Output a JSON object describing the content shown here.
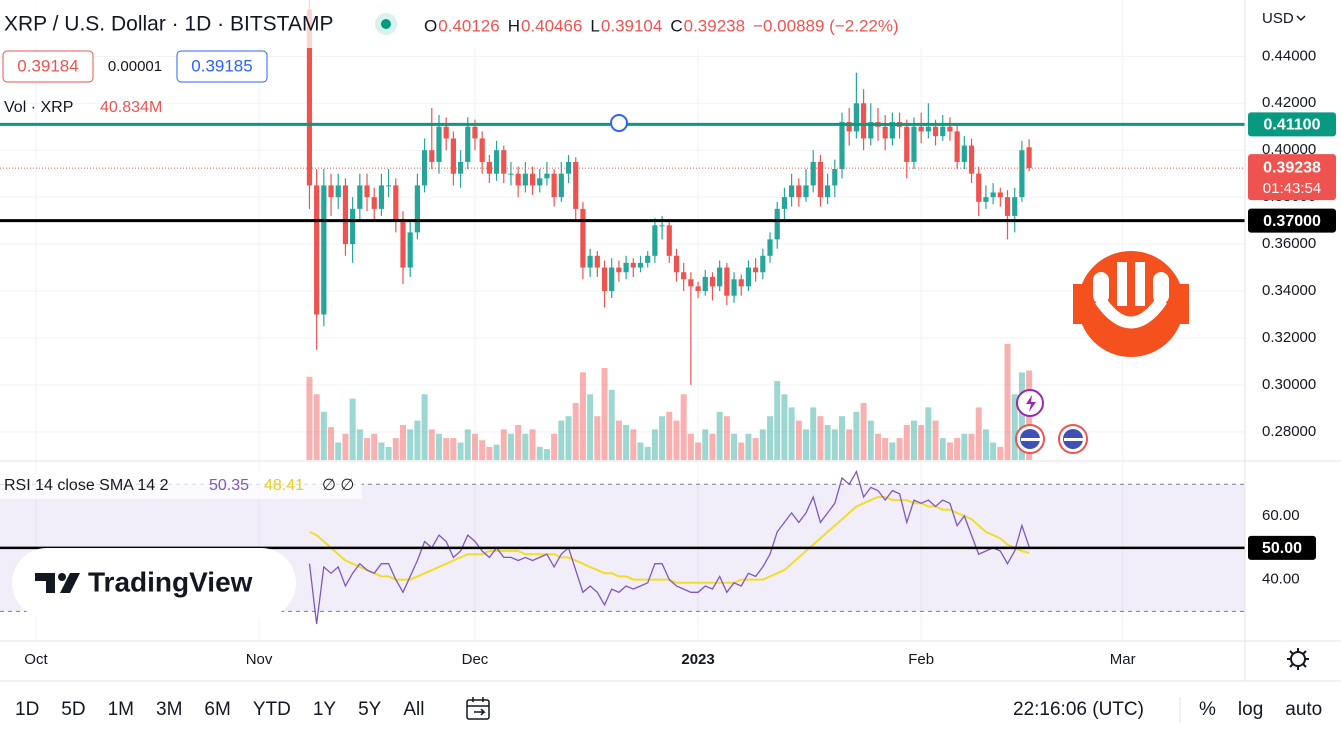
{
  "chart_data": {
    "type": "candlestick",
    "title": "XRP / U.S. Dollar · 1D · BITSTAMP",
    "ohlc": [
      {
        "key": "O",
        "value": "0.40126"
      },
      {
        "key": "H",
        "value": "0.40466"
      },
      {
        "key": "L",
        "value": "0.39104"
      },
      {
        "key": "C",
        "value": "0.39238"
      }
    ],
    "change": "−0.00889 (−2.22%)",
    "quotes": [
      "0.39184",
      "0.00001",
      "0.39185"
    ],
    "currency": "USD",
    "up_color": "#26a69a",
    "down_color": "#ef5350",
    "ylim": [
      0.268,
      0.464
    ],
    "yticks": [
      {
        "value": 0.28,
        "label": "0.28000"
      },
      {
        "value": 0.3,
        "label": "0.30000"
      },
      {
        "value": 0.32,
        "label": "0.32000"
      },
      {
        "value": 0.34,
        "label": "0.34000"
      },
      {
        "value": 0.36,
        "label": "0.36000"
      },
      {
        "value": 0.38,
        "label": "0.38000"
      },
      {
        "value": 0.4,
        "label": "0.40000"
      },
      {
        "value": 0.42,
        "label": "0.42000"
      },
      {
        "value": 0.44,
        "label": "0.44000"
      }
    ],
    "xlim": [
      -43,
      130
    ],
    "xticks": [
      {
        "value": -38,
        "label": "Oct"
      },
      {
        "value": -7,
        "label": "Nov"
      },
      {
        "value": 23,
        "label": "Dec"
      },
      {
        "value": 54,
        "label": "2023"
      },
      {
        "value": 85,
        "label": "Feb"
      },
      {
        "value": 113,
        "label": "Mar"
      }
    ],
    "grid": true,
    "lines": [
      {
        "value": 0.411,
        "label": "0.41100",
        "color": "#089981"
      },
      {
        "value": 0.37,
        "label": "0.37000",
        "color": "#000000"
      }
    ],
    "countdown": "01:43:54",
    "last_label": "0.39238",
    "candles": [
      [
        0.46,
        0.464,
        0.375,
        0.385
      ],
      [
        0.385,
        0.392,
        0.315,
        0.33
      ],
      [
        0.33,
        0.392,
        0.325,
        0.385
      ],
      [
        0.385,
        0.39,
        0.372,
        0.38
      ],
      [
        0.38,
        0.39,
        0.375,
        0.385
      ],
      [
        0.385,
        0.388,
        0.355,
        0.36
      ],
      [
        0.36,
        0.38,
        0.352,
        0.375
      ],
      [
        0.375,
        0.39,
        0.37,
        0.385
      ],
      [
        0.385,
        0.39,
        0.374,
        0.38
      ],
      [
        0.38,
        0.384,
        0.37,
        0.375
      ],
      [
        0.375,
        0.39,
        0.372,
        0.385
      ],
      [
        0.385,
        0.392,
        0.38,
        0.385
      ],
      [
        0.385,
        0.388,
        0.365,
        0.37
      ],
      [
        0.37,
        0.374,
        0.343,
        0.35
      ],
      [
        0.35,
        0.37,
        0.346,
        0.365
      ],
      [
        0.365,
        0.39,
        0.362,
        0.385
      ],
      [
        0.385,
        0.405,
        0.382,
        0.4
      ],
      [
        0.4,
        0.418,
        0.392,
        0.395
      ],
      [
        0.395,
        0.415,
        0.39,
        0.41
      ],
      [
        0.41,
        0.414,
        0.4,
        0.405
      ],
      [
        0.405,
        0.408,
        0.385,
        0.39
      ],
      [
        0.39,
        0.4,
        0.384,
        0.395
      ],
      [
        0.395,
        0.414,
        0.392,
        0.41
      ],
      [
        0.41,
        0.413,
        0.4,
        0.405
      ],
      [
        0.405,
        0.408,
        0.39,
        0.395
      ],
      [
        0.395,
        0.398,
        0.386,
        0.39
      ],
      [
        0.39,
        0.404,
        0.387,
        0.4
      ],
      [
        0.4,
        0.402,
        0.386,
        0.39
      ],
      [
        0.39,
        0.395,
        0.385,
        0.39
      ],
      [
        0.39,
        0.393,
        0.38,
        0.385
      ],
      [
        0.385,
        0.395,
        0.382,
        0.39
      ],
      [
        0.39,
        0.393,
        0.381,
        0.385
      ],
      [
        0.385,
        0.392,
        0.382,
        0.388
      ],
      [
        0.388,
        0.395,
        0.385,
        0.39
      ],
      [
        0.39,
        0.392,
        0.376,
        0.38
      ],
      [
        0.38,
        0.395,
        0.378,
        0.39
      ],
      [
        0.39,
        0.398,
        0.386,
        0.395
      ],
      [
        0.395,
        0.397,
        0.37,
        0.375
      ],
      [
        0.375,
        0.378,
        0.345,
        0.35
      ],
      [
        0.35,
        0.358,
        0.346,
        0.355
      ],
      [
        0.355,
        0.357,
        0.346,
        0.35
      ],
      [
        0.35,
        0.353,
        0.333,
        0.34
      ],
      [
        0.34,
        0.354,
        0.337,
        0.35
      ],
      [
        0.35,
        0.353,
        0.344,
        0.348
      ],
      [
        0.348,
        0.355,
        0.345,
        0.352
      ],
      [
        0.352,
        0.354,
        0.346,
        0.35
      ],
      [
        0.35,
        0.355,
        0.348,
        0.352
      ],
      [
        0.352,
        0.357,
        0.35,
        0.355
      ],
      [
        0.355,
        0.371,
        0.352,
        0.368
      ],
      [
        0.368,
        0.372,
        0.362,
        0.368
      ],
      [
        0.368,
        0.37,
        0.352,
        0.355
      ],
      [
        0.355,
        0.358,
        0.344,
        0.348
      ],
      [
        0.348,
        0.352,
        0.34,
        0.345
      ],
      [
        0.345,
        0.348,
        0.3,
        0.342
      ],
      [
        0.342,
        0.344,
        0.337,
        0.34
      ],
      [
        0.34,
        0.349,
        0.338,
        0.346
      ],
      [
        0.346,
        0.348,
        0.336,
        0.342
      ],
      [
        0.342,
        0.353,
        0.34,
        0.35
      ],
      [
        0.35,
        0.352,
        0.334,
        0.338
      ],
      [
        0.338,
        0.348,
        0.335,
        0.345
      ],
      [
        0.345,
        0.347,
        0.338,
        0.342
      ],
      [
        0.342,
        0.353,
        0.34,
        0.35
      ],
      [
        0.35,
        0.354,
        0.344,
        0.348
      ],
      [
        0.348,
        0.358,
        0.345,
        0.355
      ],
      [
        0.355,
        0.365,
        0.352,
        0.362
      ],
      [
        0.362,
        0.378,
        0.358,
        0.375
      ],
      [
        0.375,
        0.384,
        0.37,
        0.38
      ],
      [
        0.38,
        0.39,
        0.376,
        0.385
      ],
      [
        0.385,
        0.388,
        0.376,
        0.38
      ],
      [
        0.38,
        0.392,
        0.378,
        0.385
      ],
      [
        0.385,
        0.4,
        0.382,
        0.395
      ],
      [
        0.395,
        0.398,
        0.376,
        0.38
      ],
      [
        0.38,
        0.39,
        0.377,
        0.385
      ],
      [
        0.385,
        0.396,
        0.38,
        0.392
      ],
      [
        0.392,
        0.416,
        0.388,
        0.412
      ],
      [
        0.412,
        0.418,
        0.402,
        0.408
      ],
      [
        0.408,
        0.433,
        0.405,
        0.42
      ],
      [
        0.42,
        0.426,
        0.4,
        0.405
      ],
      [
        0.405,
        0.42,
        0.402,
        0.412
      ],
      [
        0.412,
        0.418,
        0.404,
        0.41
      ],
      [
        0.41,
        0.415,
        0.4,
        0.405
      ],
      [
        0.405,
        0.416,
        0.402,
        0.412
      ],
      [
        0.412,
        0.416,
        0.405,
        0.41
      ],
      [
        0.41,
        0.413,
        0.388,
        0.395
      ],
      [
        0.395,
        0.414,
        0.392,
        0.41
      ],
      [
        0.41,
        0.416,
        0.403,
        0.408
      ],
      [
        0.408,
        0.42,
        0.405,
        0.41
      ],
      [
        0.41,
        0.413,
        0.402,
        0.406
      ],
      [
        0.406,
        0.415,
        0.404,
        0.41
      ],
      [
        0.41,
        0.414,
        0.404,
        0.408
      ],
      [
        0.408,
        0.411,
        0.392,
        0.395
      ],
      [
        0.395,
        0.406,
        0.392,
        0.402
      ],
      [
        0.402,
        0.405,
        0.386,
        0.39
      ],
      [
        0.39,
        0.393,
        0.372,
        0.378
      ],
      [
        0.378,
        0.385,
        0.375,
        0.38
      ],
      [
        0.38,
        0.386,
        0.377,
        0.382
      ],
      [
        0.382,
        0.384,
        0.376,
        0.38
      ],
      [
        0.38,
        0.383,
        0.362,
        0.372
      ],
      [
        0.372,
        0.384,
        0.365,
        0.38
      ],
      [
        0.38,
        0.404,
        0.378,
        0.4
      ],
      [
        0.40126,
        0.40466,
        0.39104,
        0.39238
      ]
    ],
    "volume": {
      "name": "Vol · XRP",
      "last_label": "40.834M",
      "ylim": [
        0,
        210
      ],
      "values": [
        38,
        30,
        22,
        15,
        8,
        12,
        28,
        14,
        10,
        12,
        8,
        6,
        10,
        16,
        14,
        18,
        30,
        14,
        12,
        10,
        10,
        8,
        14,
        12,
        9,
        6,
        7,
        14,
        12,
        16,
        12,
        14,
        6,
        5,
        12,
        18,
        20,
        26,
        40,
        30,
        20,
        42,
        32,
        18,
        16,
        14,
        8,
        6,
        14,
        20,
        22,
        18,
        30,
        12,
        8,
        14,
        12,
        22,
        20,
        12,
        8,
        12,
        10,
        14,
        20,
        36,
        30,
        24,
        18,
        14,
        24,
        20,
        16,
        14,
        20,
        14,
        22,
        26,
        18,
        12,
        10,
        8,
        10,
        16,
        18,
        16,
        24,
        18,
        10,
        8,
        10,
        12,
        12,
        24,
        14,
        8,
        6,
        53,
        30,
        40,
        40.834
      ]
    },
    "rsi": {
      "title": "RSI 14 close SMA 14 2",
      "value_label": "50.35",
      "sma_label": "48.41",
      "extra": "∅ ∅",
      "color": "#7e57c2",
      "sma_color": "#f2dd2a",
      "ylim": [
        21,
        77
      ],
      "yticks": [
        {
          "value": 40,
          "label": "40.00"
        },
        {
          "value": 60,
          "label": "60.00"
        }
      ],
      "band": [
        30,
        70
      ],
      "line": {
        "value": 50,
        "label": "50.00"
      },
      "values": [
        45,
        26,
        44,
        42,
        44,
        38,
        42,
        45,
        43,
        42,
        45,
        45,
        40,
        36,
        41,
        46,
        52,
        50,
        54,
        52,
        47,
        49,
        54,
        52,
        49,
        47,
        50,
        47,
        47,
        46,
        47,
        46,
        47,
        48,
        44,
        48,
        50,
        43,
        36,
        38,
        36,
        32,
        37,
        36,
        38,
        37,
        38,
        39,
        45,
        45,
        40,
        38,
        37,
        36,
        36,
        38,
        37,
        41,
        36,
        39,
        38,
        42,
        41,
        44,
        48,
        55,
        58,
        61,
        58,
        61,
        66,
        58,
        61,
        64,
        72,
        70,
        74,
        66,
        69,
        68,
        65,
        68,
        67,
        58,
        65,
        64,
        65,
        63,
        65,
        64,
        57,
        60,
        54,
        48,
        49,
        50,
        49,
        45,
        49,
        57,
        50.35
      ],
      "sma": [
        55,
        54,
        52,
        50,
        48,
        46,
        45,
        44,
        43,
        42,
        41,
        41,
        40,
        40,
        40,
        41,
        42,
        43,
        44,
        45,
        46,
        47,
        48,
        48,
        48,
        49,
        49,
        49,
        49,
        49,
        48,
        48,
        48,
        48,
        48,
        47,
        47,
        46,
        45,
        44,
        43,
        42,
        42,
        41,
        41,
        40,
        40,
        40,
        40,
        40,
        40,
        39,
        39,
        39,
        39,
        39,
        39,
        39,
        39,
        39,
        40,
        40,
        40,
        40,
        41,
        42,
        43,
        45,
        47,
        49,
        51,
        53,
        55,
        57,
        59,
        61,
        63,
        64,
        65,
        66,
        66,
        65,
        65,
        65,
        64,
        64,
        63,
        63,
        62,
        62,
        61,
        60,
        59,
        57,
        55,
        54,
        53,
        51,
        50,
        49,
        48.41
      ]
    },
    "ranges": [
      "1D",
      "5D",
      "1M",
      "3M",
      "6M",
      "YTD",
      "1Y",
      "5Y",
      "All"
    ],
    "clock": "22:16:06 (UTC)",
    "options": [
      "%",
      "log",
      "auto"
    ],
    "brand": "TradingView"
  }
}
